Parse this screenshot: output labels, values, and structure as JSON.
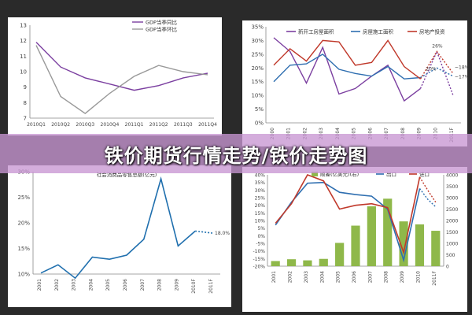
{
  "banner": {
    "title": "铁价期货行情走势/铁价走势图"
  },
  "chart_data": [
    {
      "type": "line",
      "categories": [
        "2010Q1",
        "2010Q2",
        "2010Q3",
        "2010Q4",
        "2011Q1",
        "2011Q2",
        "2011Q3",
        "2011Q4"
      ],
      "yticks": [
        7,
        8,
        9,
        10,
        11,
        12,
        13
      ],
      "ylim": [
        7,
        13
      ],
      "series": [
        {
          "name": "GDP当季同比",
          "color": "#7b3fa0",
          "values": [
            11.9,
            10.3,
            9.6,
            9.2,
            8.8,
            9.1,
            9.6,
            9.9
          ]
        },
        {
          "name": "GDP当季环比",
          "color": "#999999",
          "values": [
            11.7,
            8.4,
            7.3,
            8.6,
            9.7,
            10.4,
            10.0,
            9.8
          ]
        }
      ]
    },
    {
      "type": "line",
      "categories": [
        "2000",
        "2001",
        "2002",
        "2003",
        "2004",
        "2005",
        "2006",
        "2007",
        "2008",
        "2009",
        "2010",
        "2011F"
      ],
      "yticks": [
        "0%",
        "5%",
        "10%",
        "15%",
        "20%",
        "25%",
        "30%",
        "35%"
      ],
      "ylim": [
        0,
        35
      ],
      "series": [
        {
          "name": "新开工房屋面积",
          "color": "#7b3fa0",
          "values": [
            31,
            26,
            14.5,
            27.5,
            10.5,
            12.5,
            17,
            21,
            8,
            12.5,
            null,
            null
          ],
          "forecast": [
            12.5,
            26,
            10
          ]
        },
        {
          "name": "房屋施工面积",
          "color": "#2e6eb0",
          "values": [
            15,
            21,
            21.5,
            25,
            19.5,
            18,
            17,
            20.5,
            16,
            16.5,
            null,
            null
          ],
          "forecast": [
            16.5,
            20,
            17
          ]
        },
        {
          "name": "房地产投资",
          "color": "#c0392b",
          "values": [
            21,
            27,
            22.5,
            30,
            29.5,
            21,
            22,
            30,
            20.5,
            16,
            null,
            null
          ],
          "forecast": [
            16,
            26,
            18
          ]
        }
      ],
      "annotations": [
        "26%",
        "20%",
        "~17%",
        "~18%"
      ]
    },
    {
      "type": "line",
      "title": "社会消费品零售总额(亿元)",
      "categories": [
        "2001",
        "2002",
        "2003",
        "2004",
        "2005",
        "2006",
        "2007",
        "2008",
        "2009",
        "2010F",
        "2011F"
      ],
      "yticks": [
        "10%",
        "15%",
        "20%",
        "25%",
        "30%"
      ],
      "ylim": [
        10,
        30
      ],
      "series": [
        {
          "name": "社会消费品零售总额",
          "color": "#1f6fae",
          "values": [
            10.2,
            11.8,
            9.2,
            13.3,
            12.9,
            13.7,
            16.8,
            28.6,
            15.5,
            18.4,
            null
          ],
          "forecast": [
            18.4,
            18.0
          ]
        }
      ],
      "annotations": [
        "18.0%"
      ]
    },
    {
      "type": "bar",
      "categories": [
        "2001",
        "2002",
        "2003",
        "2004",
        "2005",
        "2006",
        "2007",
        "2008",
        "2009",
        "2010",
        "2011F"
      ],
      "yticks_left": [
        "-20%",
        "-15%",
        "-10%",
        "-5%",
        "0%",
        "5%",
        "10%",
        "15%",
        "20%",
        "25%",
        "30%",
        "35%",
        "40%"
      ],
      "ylim_left": [
        -20,
        40
      ],
      "yticks_right": [
        "0",
        "500",
        "1000",
        "1500",
        "2000",
        "2500",
        "3000",
        "3500",
        "4000"
      ],
      "ylim_right": [
        0,
        4000
      ],
      "legend": [
        "顺差(亿美元)(右)",
        "出口",
        "进口"
      ],
      "bar_color": "#8fb84a",
      "bars": [
        225,
        304,
        255,
        320,
        1020,
        1775,
        2622,
        2955,
        1961,
        1831,
        1550
      ],
      "series": [
        {
          "name": "出口",
          "color": "#2e6eb0",
          "values": [
            7,
            22,
            34.5,
            35,
            28.5,
            27,
            26,
            17.5,
            -16,
            31,
            null
          ],
          "forecast": [
            31,
            24,
            19
          ]
        },
        {
          "name": "进口",
          "color": "#c0392b",
          "values": [
            8.2,
            21,
            40,
            36,
            17.5,
            20,
            21,
            18.5,
            -11,
            38.5,
            null
          ],
          "forecast": [
            38.5,
            30,
            22
          ]
        }
      ]
    }
  ]
}
